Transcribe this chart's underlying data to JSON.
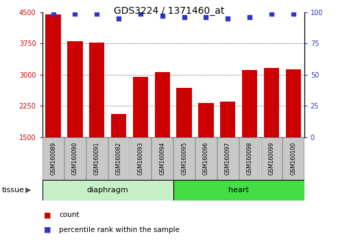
{
  "title": "GDS3224 / 1371460_at",
  "samples": [
    "GSM160089",
    "GSM160090",
    "GSM160091",
    "GSM160082",
    "GSM160093",
    "GSM160094",
    "GSM160095",
    "GSM160096",
    "GSM160097",
    "GSM160098",
    "GSM160099",
    "GSM160100"
  ],
  "counts": [
    4450,
    3800,
    3770,
    2060,
    2950,
    3060,
    2680,
    2330,
    2360,
    3120,
    3160,
    3130
  ],
  "percentiles": [
    99,
    99,
    99,
    95,
    99,
    97,
    96,
    96,
    95,
    96,
    99,
    99
  ],
  "bar_color": "#cc0000",
  "dot_color": "#3333cc",
  "ylim_left": [
    1500,
    4500
  ],
  "ylim_right": [
    0,
    100
  ],
  "yticks_left": [
    1500,
    2250,
    3000,
    3750,
    4500
  ],
  "yticks_right": [
    0,
    25,
    50,
    75,
    100
  ],
  "diaphragm_color": "#c8f0c8",
  "heart_color": "#44dd44",
  "legend_count_label": "count",
  "legend_pct_label": "percentile rank within the sample",
  "tissue_label": "tissue",
  "xlabel_bg": "#c8c8c8",
  "plot_bg": "#ffffff"
}
